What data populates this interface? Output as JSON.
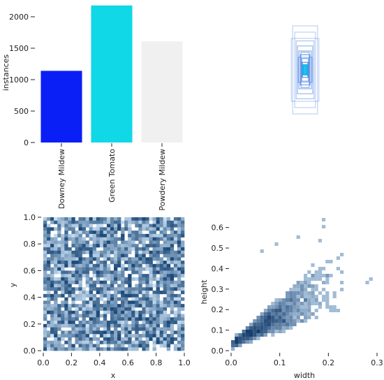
{
  "chart_data": [
    {
      "type": "bar",
      "ylabel": "instances",
      "ylim": [
        0,
        2200
      ],
      "yticks": [
        0,
        500,
        1000,
        1500,
        2000
      ],
      "categories": [
        "Downey Mildew",
        "Green Tomato",
        "Powdery Mildew"
      ],
      "values": [
        1140,
        2180,
        1610
      ],
      "colors": [
        "#0a1ff6",
        "#10d8e6",
        "#f0f0f0"
      ]
    },
    {
      "type": "overlay",
      "description_free": true,
      "boxes": [
        {
          "w": 0.36,
          "h": 0.7,
          "opacity": 0.35
        },
        {
          "w": 0.3,
          "h": 0.6,
          "opacity": 0.35
        },
        {
          "w": 0.4,
          "h": 0.5,
          "opacity": 0.35
        },
        {
          "w": 0.26,
          "h": 0.46,
          "opacity": 0.45
        },
        {
          "w": 0.22,
          "h": 0.38,
          "opacity": 0.55
        },
        {
          "w": 0.18,
          "h": 0.3,
          "opacity": 0.6
        },
        {
          "w": 0.14,
          "h": 0.24,
          "opacity": 0.7
        },
        {
          "w": 0.1,
          "h": 0.18,
          "opacity": 0.75
        },
        {
          "w": 0.08,
          "h": 0.12,
          "opacity": 0.85
        },
        {
          "w": 0.05,
          "h": 0.08,
          "opacity": 0.9
        },
        {
          "w": 0.2,
          "h": 0.2,
          "opacity": 0.5
        },
        {
          "w": 0.12,
          "h": 0.28,
          "opacity": 0.6
        }
      ],
      "color": "#1e64d8"
    },
    {
      "type": "heatmap",
      "xlabel": "x",
      "ylabel": "y",
      "xlim": [
        0,
        1
      ],
      "ylim": [
        0,
        1
      ],
      "xticks": [
        0.0,
        0.2,
        0.4,
        0.6,
        0.8,
        1.0
      ],
      "yticks": [
        0.0,
        0.2,
        0.4,
        0.6,
        0.8,
        1.0
      ],
      "bins": [
        40,
        40
      ],
      "color_low": "#cfe5f8",
      "color_high": "#1e4b7a"
    },
    {
      "type": "heatmap",
      "xlabel": "width",
      "ylabel": "height",
      "xlim": [
        0,
        0.3
      ],
      "ylim": [
        0,
        0.65
      ],
      "xticks": [
        0.0,
        0.1,
        0.2,
        0.3
      ],
      "yticks": [
        0.0,
        0.1,
        0.2,
        0.3,
        0.4,
        0.5,
        0.6
      ],
      "trend": {
        "slope": 1.45,
        "intercept": 0.03
      },
      "color_low": "#cfe5f8",
      "color_high": "#123a6a"
    }
  ]
}
